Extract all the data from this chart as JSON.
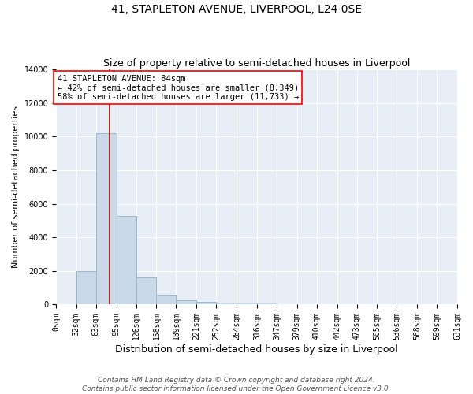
{
  "title": "41, STAPLETON AVENUE, LIVERPOOL, L24 0SE",
  "subtitle": "Size of property relative to semi-detached houses in Liverpool",
  "xlabel": "Distribution of semi-detached houses by size in Liverpool",
  "ylabel": "Number of semi-detached properties",
  "bin_edges": [
    0,
    32,
    63,
    95,
    126,
    158,
    189,
    221,
    252,
    284,
    316,
    347,
    379,
    410,
    442,
    473,
    505,
    536,
    568,
    599,
    631
  ],
  "bar_heights": [
    0,
    2000,
    10200,
    5300,
    1600,
    600,
    250,
    150,
    100,
    100,
    100,
    0,
    0,
    0,
    0,
    0,
    0,
    0,
    0,
    0
  ],
  "bar_color": "#c9d9e8",
  "bar_edge_color": "#a0b8cc",
  "property_size": 84,
  "property_line_color": "#aa0000",
  "annotation_line1": "41 STAPLETON AVENUE: 84sqm",
  "annotation_line2": "← 42% of semi-detached houses are smaller (8,349)",
  "annotation_line3": "58% of semi-detached houses are larger (11,733) →",
  "annotation_box_color": "white",
  "annotation_box_edge_color": "red",
  "ylim": [
    0,
    14000
  ],
  "yticks": [
    0,
    2000,
    4000,
    6000,
    8000,
    10000,
    12000,
    14000
  ],
  "bg_color": "#e8eef5",
  "footnote": "Contains HM Land Registry data © Crown copyright and database right 2024.\nContains public sector information licensed under the Open Government Licence v3.0.",
  "title_fontsize": 10,
  "subtitle_fontsize": 9,
  "xlabel_fontsize": 9,
  "ylabel_fontsize": 8,
  "tick_fontsize": 7,
  "annotation_fontsize": 7.5,
  "footnote_fontsize": 6.5
}
